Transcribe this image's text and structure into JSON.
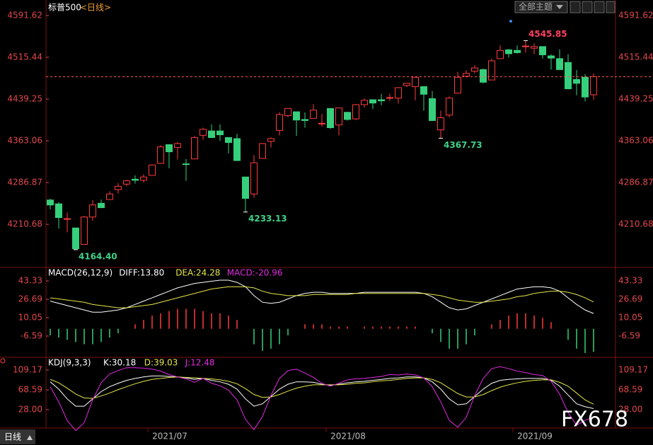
{
  "header": {
    "title": "标普500",
    "period": "<日线>"
  },
  "toolbar": {
    "theme": "全部主题"
  },
  "footer": {
    "period": "日线",
    "watermark": "FX678"
  },
  "chart_data": [
    {
      "type": "candlestick",
      "up_color": "#ff3b3b",
      "down_color": "#36d07c",
      "last_line_color": "#ff5050",
      "categories": [
        null,
        null,
        null,
        null,
        null,
        null,
        null,
        null,
        null,
        null,
        null,
        null,
        "2021/07",
        null,
        null,
        null,
        null,
        null,
        null,
        null,
        null,
        null,
        null,
        null,
        null,
        null,
        null,
        null,
        null,
        null,
        null,
        null,
        null,
        "2021/08",
        null,
        null,
        null,
        null,
        null,
        null,
        null,
        null,
        null,
        null,
        null,
        null,
        null,
        null,
        null,
        null,
        null,
        null,
        null,
        null,
        null,
        "2021/09",
        null,
        null,
        null,
        null,
        null,
        null,
        null,
        null,
        null
      ],
      "open": [
        4255,
        4248,
        4220,
        4204,
        4174,
        4224,
        4249,
        4256,
        4274,
        4284,
        4293,
        4291,
        4300,
        4322,
        4356,
        4351,
        4321,
        4330,
        4373,
        4381,
        4381,
        4369,
        4367,
        4297,
        4266,
        4331,
        4362,
        4382,
        4409,
        4416,
        4402,
        4404,
        4395,
        4422,
        4392,
        4415,
        4403,
        4429,
        4438,
        4438,
        4442,
        4441,
        4464,
        4462,
        4462,
        4440,
        4383,
        4410,
        4450,
        4481,
        4490,
        4493,
        4474,
        4513,
        4529,
        4528,
        4535,
        4532,
        4535,
        4518,
        4513,
        4506,
        4475,
        4479,
        4447
      ],
      "high": [
        4257,
        4251,
        4232,
        4204,
        4226,
        4255,
        4256,
        4271,
        4286,
        4292,
        4300,
        4302,
        4320,
        4355,
        4357,
        4361,
        4330,
        4372,
        4387,
        4393,
        4393,
        4369,
        4376,
        4297,
        4337,
        4359,
        4369,
        4415,
        4422,
        4416,
        4415,
        4430,
        4412,
        4423,
        4423,
        4416,
        4430,
        4440,
        4439,
        4449,
        4449,
        4461,
        4468,
        4480,
        4462,
        4454,
        4418,
        4444,
        4489,
        4492,
        4501,
        4495,
        4513,
        4537,
        4531,
        4537,
        4545.85,
        4541,
        4535,
        4521,
        4530,
        4521,
        4492,
        4485,
        4486
      ],
      "low": [
        4238,
        4203,
        4196,
        4164.4,
        4174,
        4217,
        4241,
        4256,
        4267,
        4280,
        4285,
        4287,
        4300,
        4322,
        4313,
        4329,
        4290,
        4330,
        4365,
        4369,
        4363,
        4340,
        4326,
        4233.13,
        4259,
        4331,
        4351,
        4373,
        4406,
        4372,
        4387,
        4404,
        4389,
        4385,
        4373,
        4400,
        4401,
        4424,
        4421,
        4428,
        4436,
        4431,
        4461,
        4437,
        4418,
        4400,
        4367.73,
        4406,
        4450,
        4479,
        4486,
        4468,
        4474,
        4513,
        4515,
        4522,
        4524,
        4521,
        4513,
        4493,
        4493,
        4457,
        4446,
        4435,
        4438
      ],
      "close": [
        4246,
        4223,
        4221,
        4166,
        4224,
        4246,
        4241,
        4266,
        4280,
        4290,
        4291,
        4297,
        4319,
        4352,
        4343,
        4358,
        4320,
        4369,
        4384,
        4369,
        4374,
        4360,
        4327,
        4258,
        4323,
        4358,
        4367,
        4411,
        4422,
        4401,
        4400,
        4419,
        4395,
        4387,
        4423,
        4402,
        4429,
        4437,
        4432,
        4436,
        4442,
        4460,
        4468,
        4479,
        4448,
        4400,
        4405,
        4441,
        4479,
        4486,
        4496,
        4470,
        4509,
        4528,
        4522,
        4524,
        4536,
        4535,
        4520,
        4514,
        4493,
        4458,
        4468,
        4443,
        4480
      ],
      "ylim": [
        4132,
        4620
      ],
      "yticks": [
        4591.62,
        4515.44,
        4439.25,
        4363.06,
        4286.87,
        4210.68
      ],
      "annotations": [
        {
          "label": "4545.85",
          "value": 4545.85,
          "color": "#ff4060"
        },
        {
          "label": "4367.73",
          "value": 4367.73,
          "color": "#40d088"
        },
        {
          "label": "4233.13",
          "value": 4233.13,
          "color": "#40d088"
        },
        {
          "label": "4164.40",
          "value": 4164.4,
          "color": "#40d088"
        }
      ]
    },
    {
      "type": "combo",
      "title": "MACD(26,12,9)",
      "ylim": [
        -25.8,
        55.5
      ],
      "yticks": [
        43.33,
        26.69,
        10.05,
        -6.59
      ],
      "series": [
        {
          "name": "DIFF:13.80",
          "type": "line",
          "color": "#ffffff",
          "values": [
            25,
            23,
            21,
            19,
            17,
            15,
            15,
            16,
            17,
            19,
            22,
            25,
            28,
            31,
            34,
            37,
            39,
            41,
            42,
            43,
            44,
            44,
            42,
            38,
            30,
            24,
            23,
            24,
            27,
            30,
            32,
            33,
            33,
            32,
            32,
            32,
            32,
            33,
            33,
            33,
            33,
            33,
            33,
            33,
            32,
            29,
            24,
            19,
            17,
            18,
            21,
            24,
            27,
            30,
            33,
            36,
            37,
            38,
            38,
            37,
            34,
            28,
            22,
            17,
            13.8
          ]
        },
        {
          "name": "DEA:24.28",
          "type": "line",
          "color": "#e6e64a",
          "values": [
            28,
            27,
            26,
            25,
            24,
            22,
            21,
            20,
            19,
            19,
            20,
            21,
            22,
            24,
            26,
            28,
            30,
            32,
            34,
            36,
            37,
            38,
            38,
            38,
            37,
            34,
            32,
            31,
            30,
            30,
            30,
            31,
            31,
            31,
            31,
            31,
            32,
            32,
            32,
            32,
            32,
            32,
            32,
            32,
            32,
            31,
            30,
            28,
            26,
            25,
            24,
            24,
            25,
            26,
            27,
            29,
            30,
            32,
            33,
            34,
            34,
            33,
            31,
            28,
            24.28
          ]
        },
        {
          "name": "MACD:-20.96",
          "type": "bar",
          "color": "#e02ae0",
          "up_color": "#ff3b3b",
          "down_color": "#36d07c",
          "values": [
            -6,
            -8,
            -10,
            -12,
            -14,
            -14,
            -12,
            -8,
            -4,
            0,
            4,
            8,
            12,
            14,
            16,
            18,
            18,
            18,
            16,
            14,
            14,
            12,
            8,
            0,
            -14,
            -20,
            -18,
            -14,
            -6,
            0,
            4,
            4,
            4,
            2,
            2,
            2,
            0,
            2,
            2,
            2,
            2,
            2,
            2,
            2,
            0,
            -4,
            -12,
            -18,
            -18,
            -14,
            -6,
            0,
            4,
            8,
            12,
            14,
            14,
            12,
            10,
            6,
            0,
            -10,
            -18,
            -22,
            -20.96
          ]
        }
      ]
    },
    {
      "type": "line",
      "title": "KDJ(9,3,3)",
      "ylim": [
        -9.7,
        135.3
      ],
      "yticks": [
        109.17,
        68.59,
        {
          "value": 28,
          "label": "28.00"
        }
      ],
      "series": [
        {
          "name": "K:30.18",
          "color": "#ffffff",
          "values": [
            85,
            70,
            50,
            35,
            35,
            50,
            65,
            75,
            82,
            88,
            92,
            95,
            97,
            97,
            96,
            95,
            93,
            90,
            92,
            88,
            85,
            80,
            70,
            50,
            35,
            40,
            55,
            70,
            80,
            85,
            85,
            84,
            80,
            78,
            80,
            83,
            85,
            86,
            88,
            90,
            92,
            93,
            95,
            95,
            93,
            85,
            70,
            50,
            38,
            40,
            55,
            70,
            82,
            88,
            90,
            91,
            92,
            92,
            92,
            88,
            76,
            58,
            40,
            34,
            30.18
          ]
        },
        {
          "name": "D:39.03",
          "color": "#e6e64a",
          "values": [
            90,
            83,
            72,
            60,
            52,
            51,
            56,
            62,
            69,
            75,
            81,
            86,
            90,
            92,
            94,
            95,
            94,
            93,
            92,
            91,
            89,
            86,
            81,
            71,
            59,
            53,
            54,
            59,
            66,
            72,
            76,
            79,
            79,
            79,
            79,
            80,
            82,
            83,
            85,
            87,
            88,
            90,
            92,
            93,
            93,
            90,
            83,
            72,
            61,
            54,
            54,
            59,
            67,
            74,
            79,
            83,
            86,
            88,
            89,
            89,
            84,
            76,
            62,
            48,
            39.03
          ]
        },
        {
          "name": "J:12.48",
          "color": "#e02ae0",
          "values": [
            75,
            44,
            6,
            -15,
            1,
            48,
            83,
            101,
            108,
            114,
            114,
            113,
            111,
            107,
            100,
            95,
            91,
            84,
            92,
            82,
            77,
            68,
            48,
            8,
            -13,
            14,
            57,
            92,
            108,
            111,
            103,
            94,
            82,
            76,
            82,
            89,
            91,
            92,
            94,
            96,
            100,
            99,
            101,
            99,
            93,
            75,
            44,
            6,
            -8,
            12,
            57,
            92,
            112,
            116,
            112,
            107,
            104,
            100,
            98,
            86,
            60,
            22,
            -4,
            6,
            12.48
          ]
        }
      ]
    }
  ]
}
